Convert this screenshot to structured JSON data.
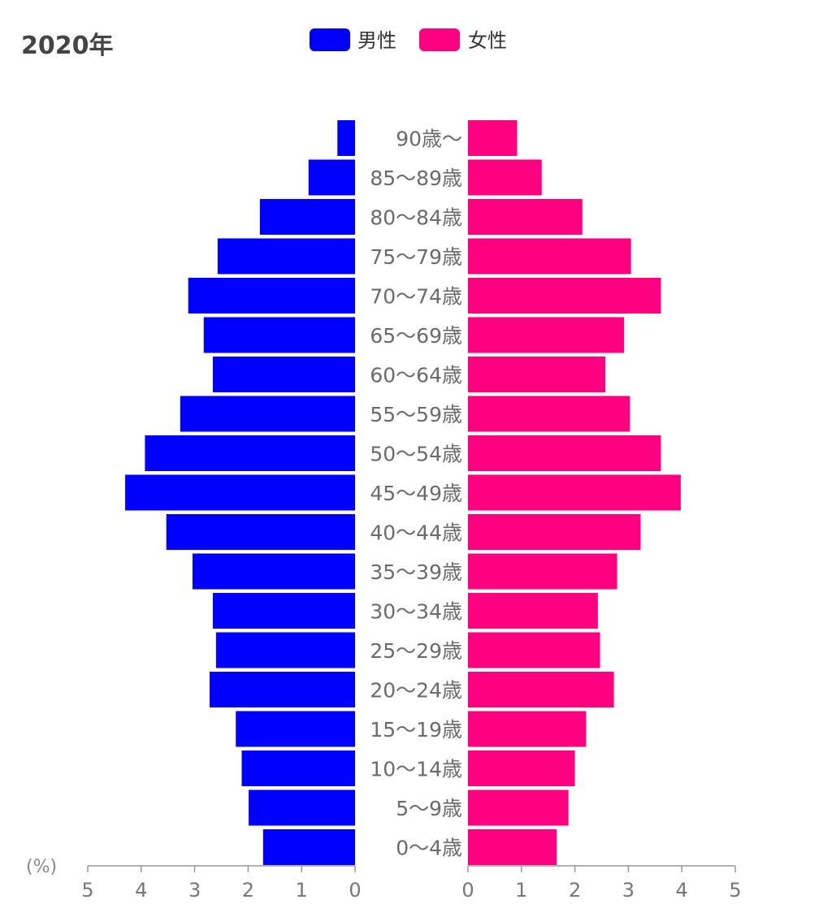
{
  "chart_data": {
    "type": "bar",
    "orientation": "horizontal-pyramid",
    "title": "2020年",
    "unit_label": "(%)",
    "categories": [
      "90歳〜",
      "85〜89歳",
      "80〜84歳",
      "75〜79歳",
      "70〜74歳",
      "65〜69歳",
      "60〜64歳",
      "55〜59歳",
      "50〜54歳",
      "45〜49歳",
      "40〜44歳",
      "35〜39歳",
      "30〜34歳",
      "25〜29歳",
      "20〜24歳",
      "15〜19歳",
      "10〜14歳",
      "5〜9歳",
      "0〜4歳"
    ],
    "series": [
      {
        "name": "男性",
        "color": "#0000ff",
        "side": "left",
        "values": [
          0.33,
          0.87,
          1.78,
          2.57,
          3.12,
          2.83,
          2.66,
          3.27,
          3.93,
          4.3,
          3.53,
          3.04,
          2.66,
          2.6,
          2.72,
          2.23,
          2.12,
          1.99,
          1.72
        ]
      },
      {
        "name": "女性",
        "color": "#ff0080",
        "side": "right",
        "values": [
          0.92,
          1.38,
          2.14,
          3.05,
          3.61,
          2.92,
          2.57,
          3.03,
          3.61,
          3.98,
          3.23,
          2.79,
          2.43,
          2.47,
          2.73,
          2.21,
          2.0,
          1.88,
          1.66
        ]
      }
    ],
    "xlim": [
      0,
      5
    ],
    "ticks": [
      "0",
      "1",
      "2",
      "3",
      "4",
      "5"
    ],
    "legend_position": "top-center",
    "grid": false
  }
}
